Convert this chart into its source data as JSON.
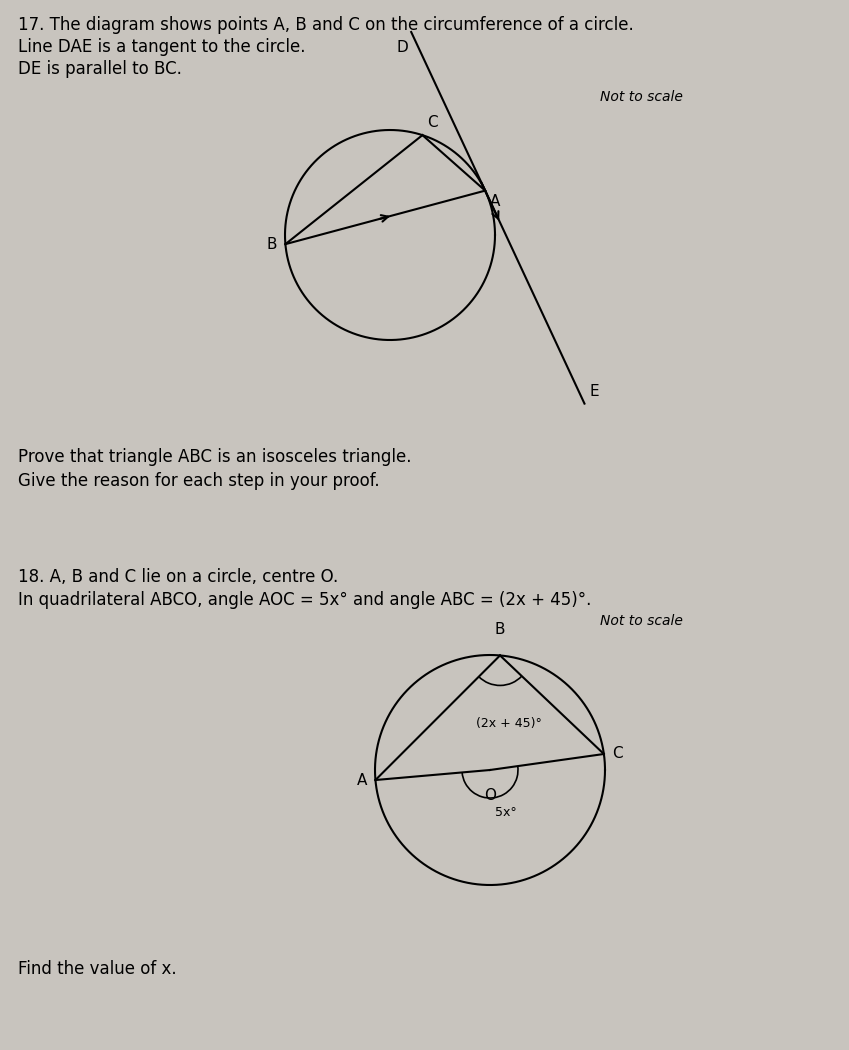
{
  "bg_color": "#c8c4be",
  "text_color": "#000000",
  "q17_title": "17. The diagram shows points A, B and C on the circumference of a circle.",
  "q17_line2": "Line DAE is a tangent to the circle.",
  "q17_line3": "DE is parallel to BC.",
  "q17_not_to_scale": "Not to scale",
  "q17_prove_text": "Prove that triangle ABC is an isosceles triangle.",
  "q17_give_reason": "Give the reason for each step in your proof.",
  "q18_title": "18. A, B and C lie on a circle, centre O.",
  "q18_line2": "In quadrilateral ABCO, angle AOC = 5x° and angle ABC = (2x + 45)°.",
  "q18_not_to_scale": "Not to scale",
  "q18_find": "Find the value of x.",
  "fig_width": 8.49,
  "fig_height": 10.5,
  "dpi": 100
}
